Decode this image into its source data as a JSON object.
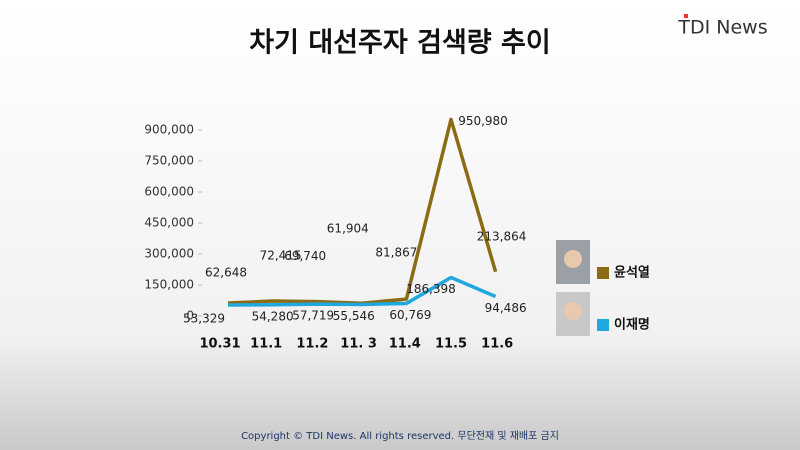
{
  "logo": "TDI News",
  "footer": "Copyright © TDI News. All rights reserved. 무단전재 및 재배포 금지",
  "chart_data": {
    "type": "line",
    "title": "차기 대선주자 검색량 추이",
    "categories": [
      "10.31",
      "11.1",
      "11.2",
      "11. 3",
      "11.4",
      "11.5",
      "11.6"
    ],
    "series": [
      {
        "name": "윤석열",
        "color": "#8b6c14",
        "values": [
          62648,
          72415,
          69740,
          61904,
          81867,
          950980,
          213864
        ],
        "value_labels": [
          "62,648",
          "72,415",
          "69,740",
          "61,904",
          "81,867",
          "950,980",
          "213,864"
        ]
      },
      {
        "name": "이재명",
        "color": "#1fa8e0",
        "values": [
          53329,
          54280,
          57719,
          55546,
          60769,
          186398,
          94486
        ],
        "value_labels": [
          "53,329",
          "54,280",
          "57,719",
          "55,546",
          "60,769",
          "186,398",
          "94,486"
        ]
      }
    ],
    "ylim": [
      0,
      900000
    ],
    "yticks": [
      0,
      {
        "value": 150000,
        "label": "150,000"
      },
      {
        "value": 300000,
        "label": "300,000"
      },
      {
        "value": 450000,
        "label": "450,000"
      },
      {
        "value": 600000,
        "label": "600,000"
      },
      {
        "value": 750000,
        "label": "750,000"
      },
      {
        "value": 900000,
        "label": "900,000"
      }
    ],
    "legend": "right"
  }
}
